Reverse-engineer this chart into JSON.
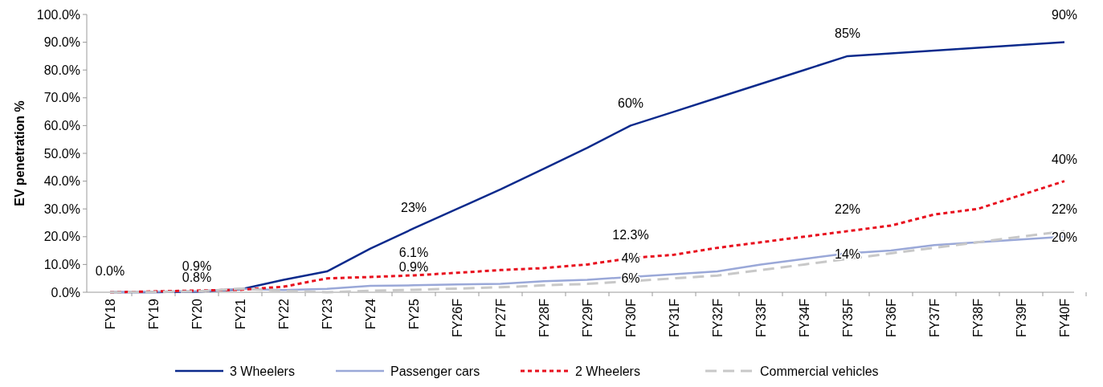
{
  "chart_data": {
    "type": "line",
    "ylabel": "EV penetration %",
    "categories": [
      "FY18",
      "FY19",
      "FY20",
      "FY21",
      "FY22",
      "FY23",
      "FY24",
      "FY25",
      "FY26F",
      "FY27F",
      "FY28F",
      "FY29F",
      "FY30F",
      "FY31F",
      "FY32F",
      "FY33F",
      "FY34F",
      "FY35F",
      "FY36F",
      "FY37F",
      "FY38F",
      "FY39F",
      "FY40F"
    ],
    "series": [
      {
        "name": "3 Wheelers",
        "color": "#0b2a8c",
        "line_style": "solid",
        "values": [
          0,
          0,
          0.2,
          1,
          4.5,
          7.5,
          15.7,
          23,
          30,
          37,
          44.5,
          52,
          60,
          65,
          70,
          75,
          80,
          85,
          86,
          87,
          88,
          89,
          90
        ]
      },
      {
        "name": "Passenger cars",
        "color": "#9aa8d8",
        "line_style": "solid",
        "values": [
          0,
          0.2,
          0.4,
          1.2,
          0.8,
          1.2,
          2.3,
          2.5,
          2.8,
          3,
          4,
          4.5,
          5.5,
          6.5,
          7.5,
          10,
          12,
          14,
          15,
          17,
          18,
          19,
          20
        ]
      },
      {
        "name": "2 Wheelers",
        "color": "#e8101e",
        "line_style": "dotted",
        "values": [
          0,
          0.3,
          0.6,
          0.9,
          2,
          5,
          5.5,
          6.1,
          7,
          8,
          8.7,
          10,
          12.3,
          13.5,
          16,
          18,
          20,
          22,
          24,
          28,
          30,
          35,
          40
        ]
      },
      {
        "name": "Commercial vehicles",
        "color": "#c8c8c8",
        "line_style": "dashed",
        "values": [
          0,
          0.1,
          0.3,
          1.3,
          0.5,
          0,
          0.5,
          0.9,
          1.3,
          1.8,
          2.5,
          3,
          4,
          5,
          6,
          8,
          10,
          12,
          14,
          16,
          18,
          20,
          22
        ]
      }
    ],
    "ylim": [
      0,
      100
    ],
    "yticks": [
      {
        "value": 0,
        "label": "0.0%"
      },
      {
        "value": 10,
        "label": "10.0%"
      },
      {
        "value": 20,
        "label": "20.0%"
      },
      {
        "value": 30,
        "label": "30.0%"
      },
      {
        "value": 40,
        "label": "40.0%"
      },
      {
        "value": 50,
        "label": "50.0%"
      },
      {
        "value": 60,
        "label": "60.0%"
      },
      {
        "value": 70,
        "label": "70.0%"
      },
      {
        "value": 80,
        "label": "80.0%"
      },
      {
        "value": 90,
        "label": "90.0%"
      },
      {
        "value": 100,
        "label": "100.0%"
      }
    ],
    "annotations": [
      "0.0%",
      "0.9%",
      "0.8%",
      "23%",
      "6.1%",
      "0.9%",
      "60%",
      "12.3%",
      "4%",
      "6%",
      "85%",
      "22%",
      "14%",
      "90%",
      "40%",
      "22%",
      "20%"
    ],
    "legend": "bottom",
    "grid": false,
    "marker": "none"
  }
}
